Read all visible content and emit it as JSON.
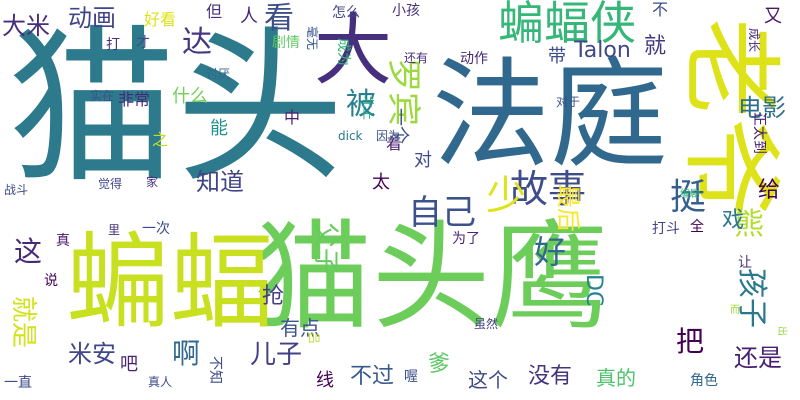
{
  "words": [
    {
      "text": "猫头",
      "color": "#2c7a8c"
    },
    {
      "text": "猫头鹰",
      "color": "#6ccd5a"
    },
    {
      "text": "法庭",
      "color": "#30688e"
    },
    {
      "text": "蝙蝠",
      "color": "#c8e020"
    },
    {
      "text": "老爷",
      "color": "#dde318"
    },
    {
      "text": "大",
      "color": "#46307e"
    },
    {
      "text": "蝙蝠侠",
      "color": "#35b779"
    },
    {
      "text": "故事",
      "color": "#3e4c8a"
    },
    {
      "text": "罗宾",
      "color": "#9bd93c"
    },
    {
      "text": "自己",
      "color": "#3b528b"
    },
    {
      "text": "少",
      "color": "#dfe318"
    },
    {
      "text": "挺",
      "color": "#355f8d"
    },
    {
      "text": "电影",
      "color": "#2e6e8e"
    },
    {
      "text": "达",
      "color": "#453781"
    },
    {
      "text": "被",
      "color": "#26828e"
    },
    {
      "text": "看",
      "color": "#3d4e8a"
    },
    {
      "text": "好",
      "color": "#31688e"
    },
    {
      "text": "父子",
      "color": "#65cb5e"
    },
    {
      "text": "孩子",
      "color": "#2a788e"
    },
    {
      "text": "熊",
      "color": "#b2dd2d"
    },
    {
      "text": "大米",
      "color": "#472d7b"
    },
    {
      "text": "动画",
      "color": "#414487"
    },
    {
      "text": "这",
      "color": "#482878"
    },
    {
      "text": "就是",
      "color": "#d2e21b"
    },
    {
      "text": "米安",
      "color": "#404688"
    },
    {
      "text": "儿子",
      "color": "#433e85"
    },
    {
      "text": "啊",
      "color": "#31688e"
    },
    {
      "text": "把",
      "color": "#440154"
    },
    {
      "text": "还是",
      "color": "#481f70"
    },
    {
      "text": "没有",
      "color": "#46337f"
    },
    {
      "text": "不过",
      "color": "#38598c"
    },
    {
      "text": "知道",
      "color": "#414487"
    },
    {
      "text": "最后",
      "color": "#fde725"
    },
    {
      "text": "Talon",
      "color": "#3f4889"
    },
    {
      "text": "DC",
      "color": "#26828e"
    },
    {
      "text": "抢",
      "color": "#433e85"
    },
    {
      "text": "有点",
      "color": "#3b528b"
    },
    {
      "text": "吧",
      "color": "#482475"
    },
    {
      "text": "这个",
      "color": "#3e4a89"
    },
    {
      "text": "真的",
      "color": "#4ec36b"
    },
    {
      "text": "爹",
      "color": "#5cc863"
    },
    {
      "text": "线",
      "color": "#440154"
    },
    {
      "text": "就",
      "color": "#453781"
    },
    {
      "text": "给",
      "color": "#440154"
    },
    {
      "text": "戏",
      "color": "#2a788e"
    },
    {
      "text": "带",
      "color": "#3e4a89"
    },
    {
      "text": "又",
      "color": "#481769"
    },
    {
      "text": "一个",
      "color": "#3b528b"
    },
    {
      "text": "对",
      "color": "#3e4a89"
    },
    {
      "text": "着",
      "color": "#481f70"
    },
    {
      "text": "太",
      "color": "#440154"
    },
    {
      "text": "能",
      "color": "#21918c"
    },
    {
      "text": "什么",
      "color": "#73d056"
    },
    {
      "text": "人",
      "color": "#482475"
    },
    {
      "text": "但",
      "color": "#46307e"
    },
    {
      "text": "好看",
      "color": "#dde318"
    },
    {
      "text": "不",
      "color": "#3e4a89"
    },
    {
      "text": "非常",
      "color": "#482878"
    },
    {
      "text": "之",
      "color": "#c2df23"
    },
    {
      "text": "中",
      "color": "#481f70"
    },
    {
      "text": "怎么",
      "color": "#404688"
    },
    {
      "text": "小孩",
      "color": "#46337f"
    },
    {
      "text": "剧情",
      "color": "#5ec962"
    },
    {
      "text": "毫无",
      "color": "#38598c"
    },
    {
      "text": "成为",
      "color": "#35b779"
    },
    {
      "text": "动作",
      "color": "#482878"
    },
    {
      "text": "还有",
      "color": "#472d7b"
    },
    {
      "text": "讨厌",
      "color": "#31688e"
    },
    {
      "text": "实在",
      "color": "#3b528b"
    },
    {
      "text": "打",
      "color": "#472d7b"
    },
    {
      "text": "才",
      "color": "#3e4a89"
    },
    {
      "text": "成长",
      "color": "#482878"
    },
    {
      "text": "对于",
      "color": "#3b528b"
    },
    {
      "text": "正太到",
      "color": "#482173"
    },
    {
      "text": "北上",
      "color": "#22a884"
    },
    {
      "text": "dick",
      "color": "#2a788e"
    },
    {
      "text": "因为",
      "color": "#39568c"
    },
    {
      "text": "战斗",
      "color": "#3e4a89"
    },
    {
      "text": "觉得",
      "color": "#404688"
    },
    {
      "text": "家",
      "color": "#46307e"
    },
    {
      "text": "编剧",
      "color": "#31b57b"
    },
    {
      "text": "真",
      "color": "#481769"
    },
    {
      "text": "里",
      "color": "#46307e"
    },
    {
      "text": "一次",
      "color": "#3e4a89"
    },
    {
      "text": "为了",
      "color": "#482878"
    },
    {
      "text": "打斗",
      "color": "#414487"
    },
    {
      "text": "全",
      "color": "#440154"
    },
    {
      "text": "让",
      "color": "#46307e"
    },
    {
      "text": "说",
      "color": "#440154"
    },
    {
      "text": "虽然",
      "color": "#433e85"
    },
    {
      "text": "而",
      "color": "#a0da39"
    },
    {
      "text": "不知",
      "color": "#3e4a89"
    },
    {
      "text": "真人",
      "color": "#3e4a89"
    },
    {
      "text": "吕",
      "color": "#bddf26"
    },
    {
      "text": "喔",
      "color": "#3b528b"
    },
    {
      "text": "角色",
      "color": "#31688e"
    },
    {
      "text": "一直",
      "color": "#3e4a89"
    },
    {
      "text": "出",
      "color": "#95d840"
    }
  ]
}
